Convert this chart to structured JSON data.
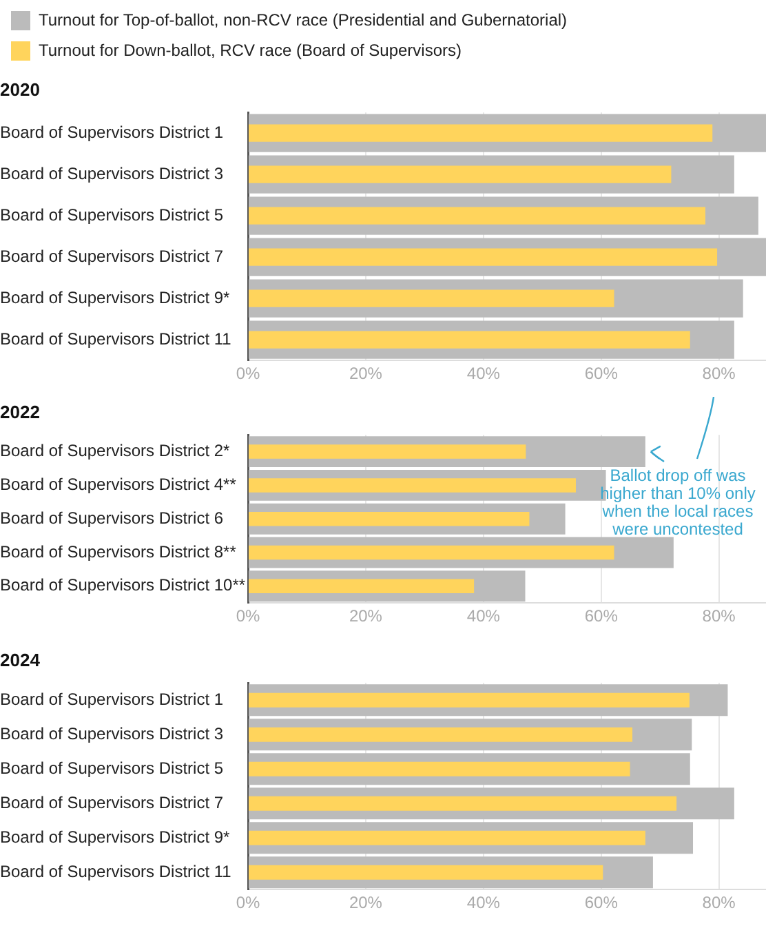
{
  "chart_data": [
    {
      "type": "bar",
      "title": "2020",
      "orientation": "horizontal",
      "legend": "top",
      "grid": "x",
      "categories": [
        "Board of Supervisors District 1",
        "Board of Supervisors District 3",
        "Board of Supervisors District 5",
        "Board of Supervisors District 7",
        "Board of Supervisors District 9*",
        "Board of Supervisors District 11"
      ],
      "series": [
        {
          "name": "Turnout for Top-of-ballot, non-RCV race (Presidential and Gubernatorial)",
          "color": "#bbbbbb",
          "values": [
            88,
            82.6,
            86.7,
            88,
            84.1,
            82.6
          ]
        },
        {
          "name": "Turnout for Down-ballot, RCV race (Board of Supervisors)",
          "color": "#ffd45c",
          "values": [
            78.9,
            71.9,
            77.7,
            79.7,
            62.2,
            75.1
          ]
        }
      ],
      "xlim": [
        0,
        88
      ],
      "xticks": [
        {
          "value": 0,
          "label": "0%"
        },
        {
          "value": 20,
          "label": "20%"
        },
        {
          "value": 40,
          "label": "40%"
        },
        {
          "value": 60,
          "label": "60%"
        },
        {
          "value": 80,
          "label": "80%"
        }
      ]
    },
    {
      "type": "bar",
      "title": "2022",
      "orientation": "horizontal",
      "grid": "x",
      "categories": [
        "Board of Supervisors District 2*",
        "Board of Supervisors District 4**",
        "Board of Supervisors District 6",
        "Board of Supervisors District 8**",
        "Board of Supervisors District 10**"
      ],
      "series": [
        {
          "color": "#bbbbbb",
          "values": [
            67.5,
            60.8,
            53.9,
            72.3,
            47.1
          ]
        },
        {
          "color": "#ffd45c",
          "values": [
            47.2,
            55.7,
            47.8,
            62.2,
            38.4
          ]
        }
      ],
      "xlim": [
        0,
        88
      ],
      "xticks": [
        {
          "value": 0,
          "label": "0%"
        },
        {
          "value": 20,
          "label": "20%"
        },
        {
          "value": 40,
          "label": "40%"
        },
        {
          "value": 60,
          "label": "60%"
        },
        {
          "value": 80,
          "label": "80%"
        }
      ],
      "annotations": [
        "Ballot drop off was higher than 10% only when the local races were uncontested"
      ]
    },
    {
      "type": "bar",
      "title": "2024",
      "orientation": "horizontal",
      "grid": "x",
      "categories": [
        "Board of Supervisors District 1",
        "Board of Supervisors District 3",
        "Board of Supervisors District 5",
        "Board of Supervisors District 7",
        "Board of Supervisors District 9*",
        "Board of Supervisors District 11"
      ],
      "series": [
        {
          "color": "#bbbbbb",
          "values": [
            81.5,
            75.4,
            75.1,
            82.6,
            75.6,
            68.8
          ]
        },
        {
          "color": "#ffd45c",
          "values": [
            75.0,
            65.3,
            64.9,
            72.8,
            67.5,
            60.3
          ]
        }
      ],
      "xlim": [
        0,
        88
      ],
      "xticks": [
        {
          "value": 0,
          "label": "0%"
        },
        {
          "value": 20,
          "label": "20%"
        },
        {
          "value": 40,
          "label": "40%"
        },
        {
          "value": 60,
          "label": "60%"
        },
        {
          "value": 80,
          "label": "80%"
        }
      ]
    }
  ]
}
